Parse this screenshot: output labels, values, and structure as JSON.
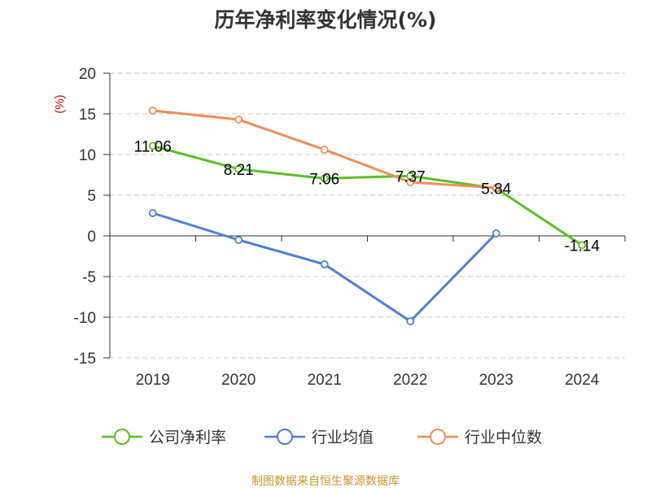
{
  "chart_data": {
    "type": "line",
    "title": "历年净利率变化情况(%)",
    "ylabel": "(%)",
    "xlabel": "",
    "categories": [
      "2019",
      "2020",
      "2021",
      "2022",
      "2023",
      "2024"
    ],
    "ylim": [
      -15,
      20
    ],
    "yticks": [
      -15,
      -10,
      -5,
      0,
      5,
      10,
      15,
      20
    ],
    "grid": true,
    "legend_position": "bottom",
    "series": [
      {
        "name": "公司净利率",
        "color": "#5cbf26",
        "values": [
          11.06,
          8.21,
          7.06,
          7.37,
          5.84,
          -1.14
        ],
        "labels": [
          "11.06",
          "8.21",
          "7.06",
          "7.37",
          "5.84",
          "-1.14"
        ]
      },
      {
        "name": "行业均值",
        "color": "#4f7fd6",
        "values": [
          2.8,
          -0.5,
          -3.5,
          -10.5,
          0.3,
          null
        ]
      },
      {
        "name": "行业中位数",
        "color": "#f28c58",
        "values": [
          15.4,
          14.3,
          10.6,
          6.6,
          5.9,
          null
        ]
      }
    ]
  },
  "source": "制图数据来自恒生聚源数据库"
}
